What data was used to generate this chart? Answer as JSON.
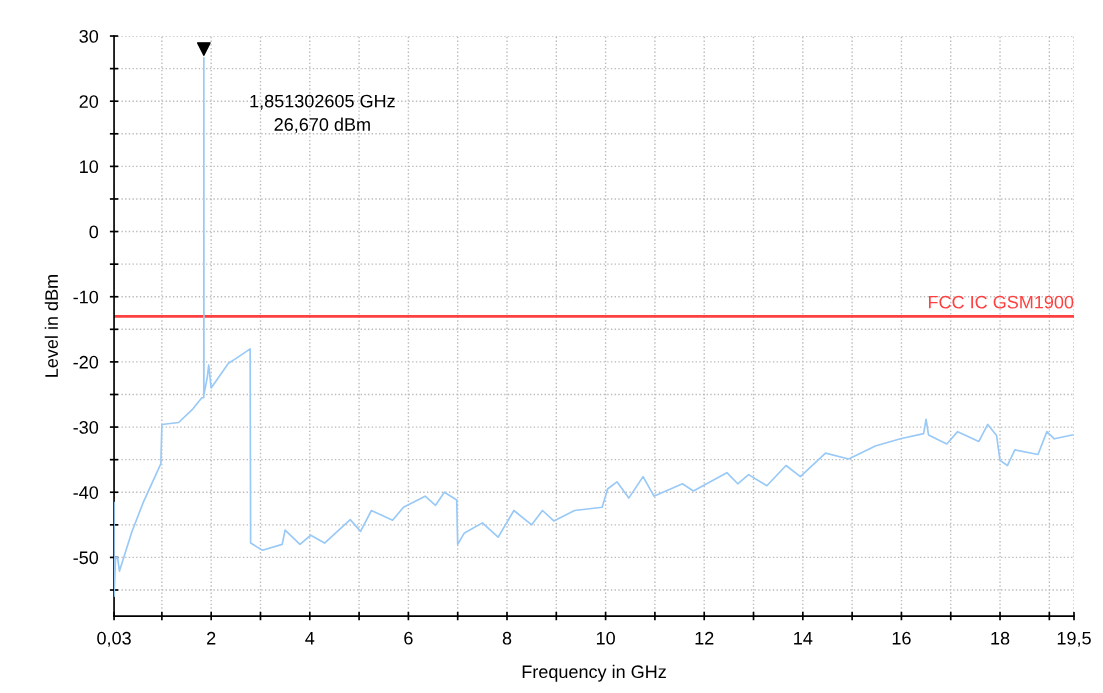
{
  "chart_data": {
    "type": "line",
    "xlabel": "Frequency in GHz",
    "ylabel": "Level in dBm",
    "xlim": [
      0.03,
      19.5
    ],
    "ylim": [
      -59,
      30
    ],
    "xticks": [
      {
        "value": 0.03,
        "label": "0,03"
      },
      {
        "value": 1,
        "label": null
      },
      2,
      {
        "value": 3,
        "label": null
      },
      4,
      {
        "value": 5,
        "label": null
      },
      6,
      {
        "value": 7,
        "label": null
      },
      8,
      {
        "value": 9,
        "label": null
      },
      10,
      {
        "value": 11,
        "label": null
      },
      12,
      {
        "value": 13,
        "label": null
      },
      14,
      {
        "value": 15,
        "label": null
      },
      16,
      {
        "value": 17,
        "label": null
      },
      18,
      {
        "value": 19,
        "label": null
      },
      {
        "value": 19.5,
        "label": "19,5"
      }
    ],
    "yticks": [
      {
        "value": -55,
        "label": null
      },
      -50,
      {
        "value": -45,
        "label": null
      },
      -40,
      {
        "value": -35,
        "label": null
      },
      -30,
      {
        "value": -25,
        "label": null
      },
      -20,
      {
        "value": -15,
        "label": null
      },
      -10,
      {
        "value": -5,
        "label": null
      },
      0,
      {
        "value": 5,
        "label": null
      },
      10,
      {
        "value": 15,
        "label": null
      },
      20,
      {
        "value": 25,
        "label": null
      },
      30
    ],
    "grid": true,
    "line_style": "solid",
    "series": [
      {
        "color": "#99c9f7",
        "x": [
          0.03,
          0.03,
          0.06,
          0.1,
          0.14,
          0.39,
          0.62,
          0.98,
          1.0,
          1.34,
          1.63,
          1.81,
          1.85,
          1.851302605,
          1.853,
          1.92,
          1.95,
          2.0,
          2.35,
          2.5,
          2.79,
          2.8,
          3.04,
          3.44,
          3.5,
          3.8,
          4.02,
          4.3,
          4.82,
          5.03,
          5.25,
          5.68,
          5.9,
          6.34,
          6.55,
          6.73,
          6.98,
          7.0,
          7.13,
          7.5,
          7.82,
          8.14,
          8.5,
          8.72,
          8.95,
          9.37,
          9.93,
          10.04,
          10.23,
          10.47,
          10.76,
          10.98,
          11.56,
          11.78,
          12.46,
          12.68,
          12.9,
          13.27,
          13.66,
          13.95,
          14.46,
          14.93,
          15.47,
          15.98,
          16.45,
          16.5,
          16.55,
          16.92,
          17.14,
          17.57,
          17.75,
          17.93,
          18.0,
          18.15,
          18.3,
          18.77,
          18.95,
          19.1,
          19.47
        ],
        "values": [
          -41.6,
          -56,
          -50,
          -50,
          -52.1,
          -46.1,
          -41.6,
          -35.6,
          -29.6,
          -29.3,
          -27.2,
          -25.5,
          -25.5,
          26.67,
          -25,
          -22.4,
          -20.5,
          -24,
          -20.2,
          -19.5,
          -18,
          -47.8,
          -48.9,
          -48,
          -45.8,
          -48,
          -46.6,
          -47.8,
          -44.2,
          -46,
          -42.8,
          -44.3,
          -42.3,
          -40.6,
          -42,
          -40,
          -41.2,
          -48,
          -46.3,
          -44.7,
          -46.9,
          -42.8,
          -45,
          -42.8,
          -44.4,
          -42.8,
          -42.3,
          -39.5,
          -38.4,
          -40.9,
          -37.6,
          -40.6,
          -38.7,
          -39.8,
          -37,
          -38.7,
          -37.3,
          -39,
          -35.9,
          -37.6,
          -34,
          -34.9,
          -32.9,
          -31.8,
          -31,
          -28.8,
          -31.2,
          -32.6,
          -30.7,
          -32.2,
          -29.6,
          -31.3,
          -35.1,
          -35.9,
          -33.5,
          -34.2,
          -30.7,
          -31.8,
          -31.2
        ]
      },
      {
        "type": "scatter",
        "color": "#000000",
        "marker": "triangle",
        "x": [
          1.851302605
        ],
        "values": [
          28
        ]
      }
    ],
    "ref_lines": [
      {
        "axis": "y",
        "value": -13,
        "label": "FCC IC GSM1900",
        "color": "#ff4040",
        "line_style": "solid"
      }
    ],
    "annotations": [
      "1,851302605 GHz\n26,670 dBm"
    ]
  }
}
